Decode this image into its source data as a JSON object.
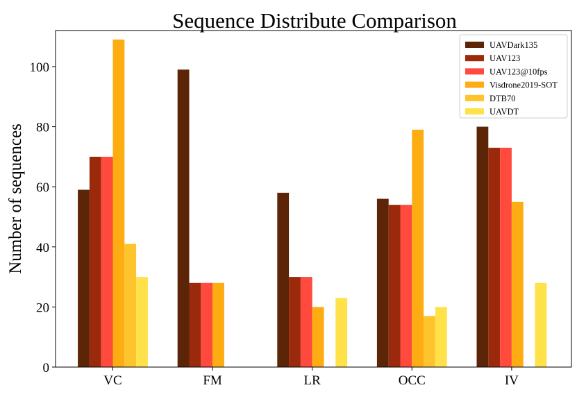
{
  "chart_data": {
    "type": "bar",
    "title": "Sequence Distribute Comparison",
    "xlabel": "",
    "ylabel": "Number of sequences",
    "ylim": [
      0,
      112
    ],
    "yticks": [
      0,
      20,
      40,
      60,
      80,
      100
    ],
    "ytick_labels": [
      "0",
      "20",
      "40",
      "60",
      "80",
      "100"
    ],
    "categories": [
      "VC",
      "FM",
      "LR",
      "OCC",
      "IV"
    ],
    "legend_position": "top-right",
    "series": [
      {
        "name": "UAVDark135",
        "color": "#5c2508",
        "values": [
          59,
          99,
          58,
          56,
          80
        ]
      },
      {
        "name": "UAV123",
        "color": "#9b2a0c",
        "values": [
          70,
          28,
          30,
          54,
          73
        ]
      },
      {
        "name": "UAV123@10fps",
        "color": "#ff4a3d",
        "values": [
          70,
          28,
          30,
          54,
          73
        ]
      },
      {
        "name": "Visdrone2019-SOT",
        "color": "#fdac12",
        "values": [
          109,
          28,
          20,
          79,
          55
        ]
      },
      {
        "name": "DTB70",
        "color": "#fec42d",
        "values": [
          41,
          0,
          0,
          17,
          0
        ]
      },
      {
        "name": "UAVDT",
        "color": "#ffe24a",
        "values": [
          30,
          0,
          23,
          20,
          28
        ]
      }
    ]
  }
}
